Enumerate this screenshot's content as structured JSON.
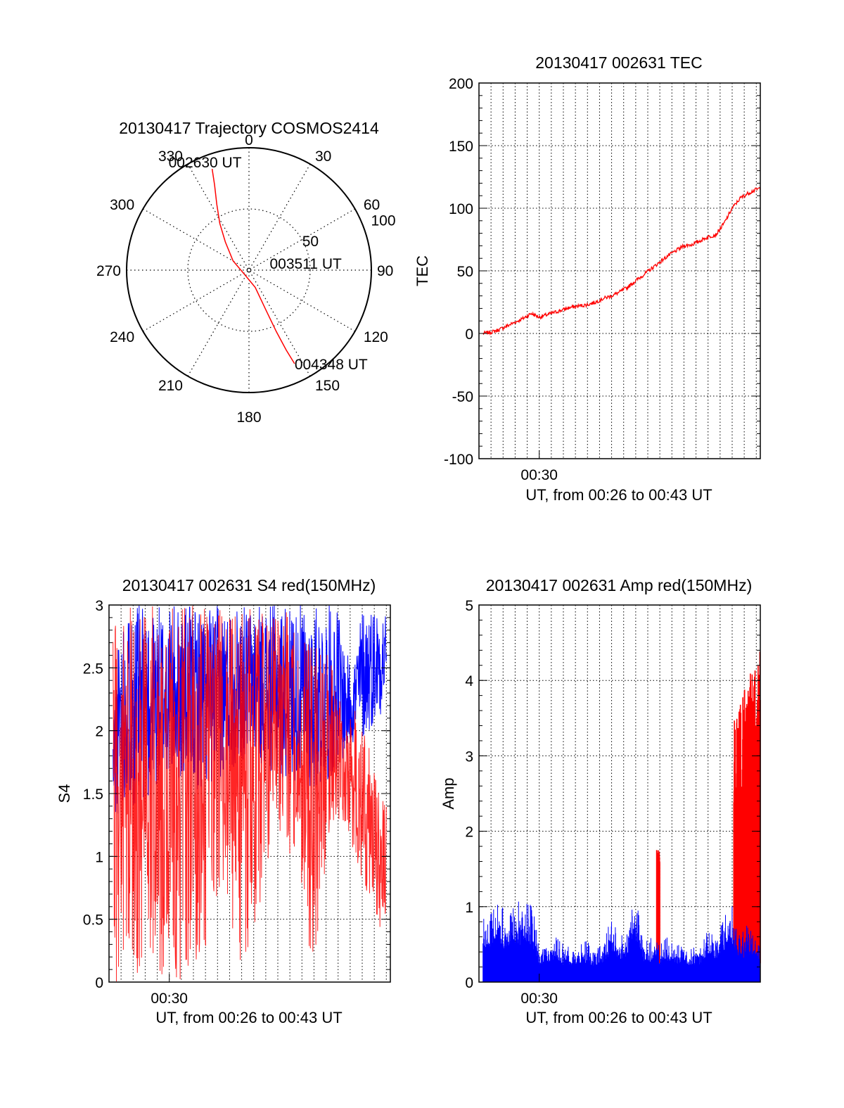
{
  "chart_data": [
    {
      "id": "trajectory",
      "type": "polar",
      "title": "20130417 Trajectory COSMOS2414",
      "azimuth_labels": [
        "0",
        "30",
        "60",
        "90",
        "120",
        "150",
        "180",
        "210",
        "240",
        "270",
        "300",
        "330"
      ],
      "radial_labels": [
        "50",
        "100"
      ],
      "radial_values": [
        50,
        100
      ],
      "rmax": 100,
      "grid": true,
      "series": [
        {
          "color": "#ff0000",
          "points": [
            {
              "az": 340,
              "r": 88
            },
            {
              "az": 338,
              "r": 75
            },
            {
              "az": 334,
              "r": 60
            },
            {
              "az": 328,
              "r": 45
            },
            {
              "az": 320,
              "r": 30
            },
            {
              "az": 300,
              "r": 15
            },
            {
              "az": 230,
              "r": 5
            },
            {
              "az": 160,
              "r": 15
            },
            {
              "az": 157,
              "r": 35
            },
            {
              "az": 156,
              "r": 55
            },
            {
              "az": 155,
              "r": 72
            },
            {
              "az": 154,
              "r": 85
            }
          ]
        }
      ],
      "annotations": [
        {
          "text": "002630 UT",
          "az": 340,
          "r": 88
        },
        {
          "text": "003511 UT",
          "az": 90,
          "r": 2
        },
        {
          "text": "004348 UT",
          "az": 154,
          "r": 85
        }
      ]
    },
    {
      "id": "tec",
      "type": "line",
      "title": "20130417 002631 TEC",
      "ylabel": "TEC",
      "xlabel": "UT, from 00:26 to 00:43 UT",
      "xtick_label": "00:30",
      "xtick_value": 30.0,
      "xlim": [
        26.25,
        43.75
      ],
      "ylim": [
        -100,
        200
      ],
      "yticks": [
        -100,
        -50,
        0,
        50,
        100,
        150,
        200
      ],
      "grid": true,
      "series": [
        {
          "color": "#ff0000",
          "x": [
            26.5,
            27.0,
            27.5,
            28.0,
            28.5,
            29.0,
            29.5,
            30.0,
            30.5,
            31.0,
            31.5,
            32.0,
            32.5,
            33.0,
            33.5,
            34.0,
            34.5,
            35.0,
            35.5,
            36.0,
            36.5,
            37.0,
            37.5,
            38.0,
            38.5,
            39.0,
            39.5,
            40.0,
            40.5,
            41.0,
            41.5,
            42.0,
            42.5,
            43.0,
            43.5,
            43.75
          ],
          "y": [
            0,
            1,
            3,
            6,
            9,
            12,
            16,
            13,
            15,
            17,
            19,
            21,
            22,
            23,
            25,
            28,
            30,
            33,
            37,
            42,
            47,
            52,
            57,
            62,
            66,
            70,
            71,
            74,
            77,
            79,
            88,
            100,
            108,
            112,
            115,
            116
          ]
        }
      ]
    },
    {
      "id": "s4",
      "type": "line",
      "title": "20130417 002631 S4 red(150MHz)",
      "ylabel": "S4",
      "xlabel": "UT, from 00:26 to 00:43 UT",
      "xtick_label": "00:30",
      "xtick_value": 30.0,
      "xlim": [
        26.25,
        43.75
      ],
      "ylim": [
        0,
        3
      ],
      "yticks": [
        0,
        0.5,
        1,
        1.5,
        2,
        2.5,
        3
      ],
      "ytick_labels": [
        "0",
        "0.5",
        "1",
        "1.5",
        "2",
        "2.5",
        "3"
      ],
      "grid": true,
      "series": [
        {
          "color": "#0000ff",
          "x": [
            26.5,
            27.0,
            27.5,
            28.0,
            28.5,
            29.0,
            29.5,
            30.0,
            31.0,
            32.0,
            33.0,
            34.0,
            35.0,
            36.0,
            37.0,
            38.0,
            39.0,
            40.0,
            40.5,
            41.0,
            41.5,
            42.0,
            42.5,
            43.0,
            43.5
          ],
          "low": [
            1.2,
            1.4,
            1.5,
            1.3,
            1.5,
            1.4,
            1.6,
            1.6,
            1.6,
            1.5,
            1.6,
            1.7,
            1.8,
            1.7,
            1.6,
            1.6,
            1.5,
            1.6,
            1.7,
            1.8,
            1.9,
            1.9,
            2.0,
            2.1,
            2.2
          ],
          "high": [
            2.2,
            3.0,
            3.0,
            3.0,
            3.0,
            3.0,
            3.0,
            3.0,
            3.0,
            3.0,
            3.0,
            3.0,
            3.0,
            3.0,
            3.0,
            3.0,
            3.0,
            3.0,
            3.0,
            2.6,
            2.6,
            3.0,
            3.0,
            3.0,
            3.0
          ]
        },
        {
          "color": "#ff0000",
          "x": [
            26.5,
            27.0,
            27.5,
            28.0,
            28.5,
            29.0,
            29.5,
            30.0,
            31.0,
            32.0,
            33.0,
            34.0,
            35.0,
            36.0,
            37.0,
            38.0,
            39.0,
            40.0,
            40.5,
            41.0,
            41.5,
            42.0,
            42.5,
            43.0,
            43.5
          ],
          "low": [
            0,
            0,
            0,
            0,
            0,
            0,
            0,
            0,
            0,
            0.2,
            0.5,
            0.3,
            0,
            0.8,
            1.2,
            0.8,
            0,
            1.2,
            1.3,
            1.2,
            1.0,
            0.8,
            0.6,
            0.5,
            0.2
          ],
          "high": [
            3.0,
            3.0,
            3.0,
            3.0,
            3.0,
            3.0,
            3.0,
            3.0,
            3.0,
            3.0,
            3.0,
            3.0,
            3.0,
            3.0,
            3.0,
            2.8,
            2.7,
            2.6,
            2.3,
            2.0,
            2.2,
            2.0,
            1.9,
            1.6,
            1.4
          ]
        }
      ]
    },
    {
      "id": "amp",
      "type": "area",
      "title": "20130417 002631 Amp red(150MHz)",
      "ylabel": "Amp",
      "xlabel": "UT, from 00:26 to 00:43 UT",
      "xtick_label": "00:30",
      "xtick_value": 30.0,
      "xlim": [
        26.25,
        43.75
      ],
      "ylim": [
        0,
        5
      ],
      "yticks": [
        0,
        1,
        2,
        3,
        4,
        5
      ],
      "grid": true,
      "series": [
        {
          "color": "#ff0000",
          "segments": [
            {
              "x0": 37.3,
              "x1": 37.5,
              "low": 0.4,
              "high": 1.75
            },
            {
              "x0": 42.1,
              "x1": 43.75,
              "low": 0.3,
              "high": 4.5
            }
          ]
        },
        {
          "color": "#0000ff",
          "x": [
            26.5,
            27.0,
            27.5,
            28.0,
            28.5,
            29.0,
            29.5,
            30.0,
            30.5,
            31.0,
            31.5,
            32.0,
            32.5,
            33.0,
            33.5,
            34.0,
            34.5,
            35.0,
            35.5,
            36.0,
            36.5,
            37.0,
            37.5,
            38.0,
            38.5,
            39.0,
            39.5,
            40.0,
            40.5,
            41.0,
            41.5,
            42.0,
            42.5,
            43.0,
            43.5,
            43.75
          ],
          "high": [
            1.05,
            0.9,
            1.1,
            0.85,
            1.1,
            1.05,
            1.1,
            0.5,
            0.55,
            0.6,
            0.5,
            0.45,
            0.5,
            0.55,
            0.45,
            0.5,
            0.9,
            0.6,
            0.7,
            1.2,
            0.55,
            0.6,
            0.5,
            0.6,
            0.5,
            0.55,
            0.45,
            0.5,
            0.8,
            0.6,
            0.9,
            1.05,
            0.6,
            0.8,
            0.7,
            0.6
          ]
        }
      ]
    }
  ]
}
